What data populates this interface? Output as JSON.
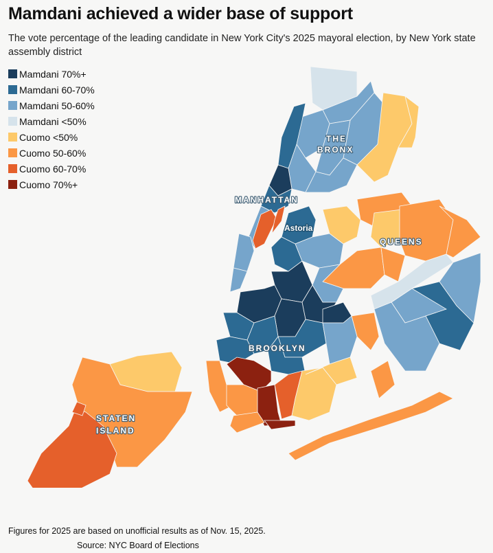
{
  "header": {
    "title": "Mamdani achieved a wider base of support",
    "subtitle": "The vote percentage of the leading candidate in New York City's 2025 mayoral election, by New York state assembly district"
  },
  "legend": {
    "items": [
      {
        "label": "Mamdani 70%+",
        "color": "#1b3d5c"
      },
      {
        "label": "Mamdani 60-70%",
        "color": "#2c6a93"
      },
      {
        "label": "Mamdani 50-60%",
        "color": "#76a5cb"
      },
      {
        "label": "Mamdani <50%",
        "color": "#d6e3eb"
      },
      {
        "label": "Cuomo <50%",
        "color": "#fdc96a"
      },
      {
        "label": "Cuomo 50-60%",
        "color": "#fb9745"
      },
      {
        "label": "Cuomo 60-70%",
        "color": "#e5602b"
      },
      {
        "label": "Cuomo 70%+",
        "color": "#8c2110"
      }
    ]
  },
  "map_labels": {
    "bronx_1": "THE",
    "bronx_2": "BRONX",
    "manhattan": "MANHATTAN",
    "astoria": "Astoria",
    "queens": "QUEENS",
    "brooklyn": "BROOKLYN",
    "staten_1": "STATEN",
    "staten_2": "ISLAND"
  },
  "footer": {
    "footnote": "Figures for 2025 are based on unofficial results as of Nov. 15, 2025.",
    "source": "Source: NYC Board of Elections"
  }
}
